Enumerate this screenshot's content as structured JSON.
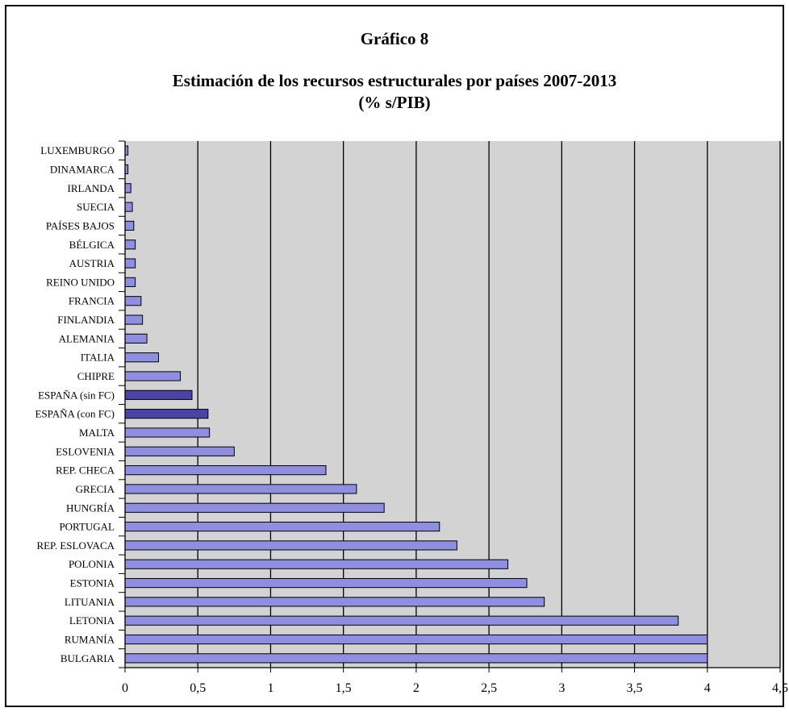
{
  "chart_data": {
    "type": "bar",
    "orientation": "horizontal",
    "title": "Gráfico 8",
    "subtitle_line1": "Estimación de los recursos estructurales por países 2007-2013",
    "subtitle_line2": "(% s/PIB)",
    "categories": [
      "LUXEMBURGO",
      "DINAMARCA",
      "IRLANDA",
      "SUECIA",
      "PAÍSES BAJOS",
      "BÉLGICA",
      "AUSTRIA",
      "REINO UNIDO",
      "FRANCIA",
      "FINLANDIA",
      "ALEMANIA",
      "ITALIA",
      "CHIPRE",
      "ESPAÑA (sin FC)",
      "ESPAÑA (con FC)",
      "MALTA",
      "ESLOVENIA",
      "REP. CHECA",
      "GRECIA",
      "HUNGRÍA",
      "PORTUGAL",
      "REP. ESLOVACA",
      "POLONIA",
      "ESTONIA",
      "LITUANIA",
      "LETONIA",
      "RUMANÍA",
      "BULGARIA"
    ],
    "values": [
      0.02,
      0.02,
      0.04,
      0.05,
      0.06,
      0.07,
      0.07,
      0.07,
      0.11,
      0.12,
      0.15,
      0.23,
      0.38,
      0.46,
      0.57,
      0.58,
      0.75,
      1.38,
      1.59,
      1.78,
      2.16,
      2.28,
      2.63,
      2.76,
      2.88,
      3.8,
      4.0,
      4.0
    ],
    "highlight_categories": [
      "ESPAÑA (sin FC)",
      "ESPAÑA (con FC)"
    ],
    "x_ticks": [
      "0",
      "0,5",
      "1",
      "1,5",
      "2",
      "2,5",
      "3",
      "3,5",
      "4",
      "4,5"
    ],
    "xlim": [
      0,
      4.5
    ],
    "grid": "vertical",
    "legend": "none",
    "colors": {
      "bar": "#8f8ee0",
      "bar_highlight": "#4c43a6",
      "plot_background": "#d3d3d3",
      "gridline": "#000000"
    }
  }
}
